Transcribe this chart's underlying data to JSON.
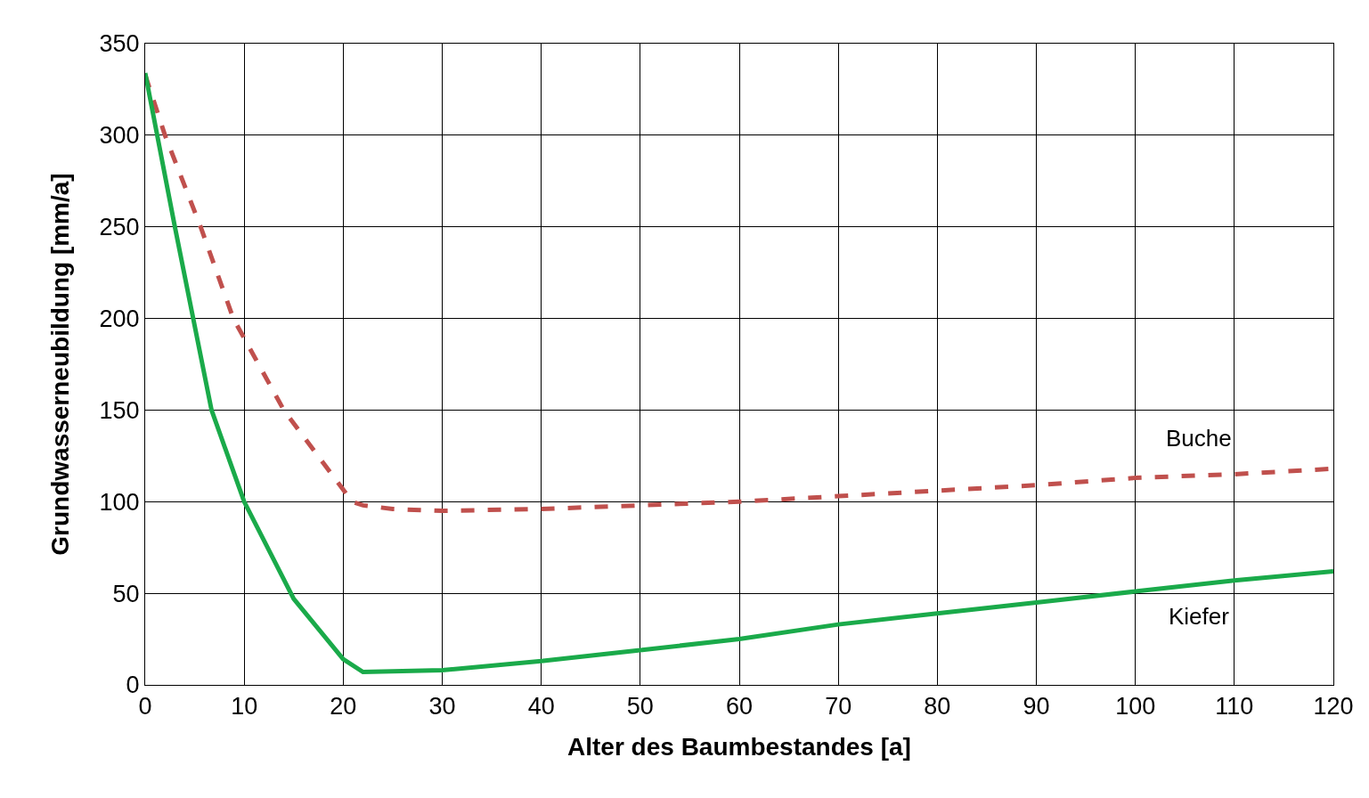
{
  "chart_data": {
    "type": "line",
    "xlabel": "Alter des Baumbestandes [a]",
    "ylabel": "Grundwasserneubildung [mm/a]",
    "xlim": [
      0,
      120
    ],
    "xticks": [
      0,
      10,
      20,
      30,
      40,
      50,
      60,
      70,
      80,
      90,
      100,
      110,
      120
    ],
    "ylim": [
      0,
      350
    ],
    "yticks": [
      0,
      50,
      100,
      150,
      200,
      250,
      300,
      350
    ],
    "grid": true,
    "legend": false,
    "marker": "none",
    "series": [
      {
        "name": "Buche",
        "color": "#c0504d",
        "line_style": "dashed",
        "x": [
          0,
          2,
          5.6,
          8.9,
          14,
          20.9,
          22,
          25,
          30,
          40,
          50,
          60,
          70,
          80,
          90,
          100,
          110,
          120
        ],
        "values": [
          333,
          300,
          250,
          200,
          150,
          100,
          98,
          96,
          95,
          96,
          98,
          100,
          103,
          106,
          109,
          113,
          115,
          118
        ]
      },
      {
        "name": "Kiefer",
        "color": "#1aaa4a",
        "line_style": "solid",
        "x": [
          0,
          3,
          6.7,
          10,
          15,
          20,
          22,
          30,
          40,
          50,
          60,
          70,
          80,
          90,
          100,
          110,
          120
        ],
        "values": [
          334,
          250,
          150,
          100,
          47,
          14,
          7,
          8,
          13,
          19,
          25,
          33,
          39,
          45,
          51,
          57,
          62
        ]
      }
    ]
  }
}
